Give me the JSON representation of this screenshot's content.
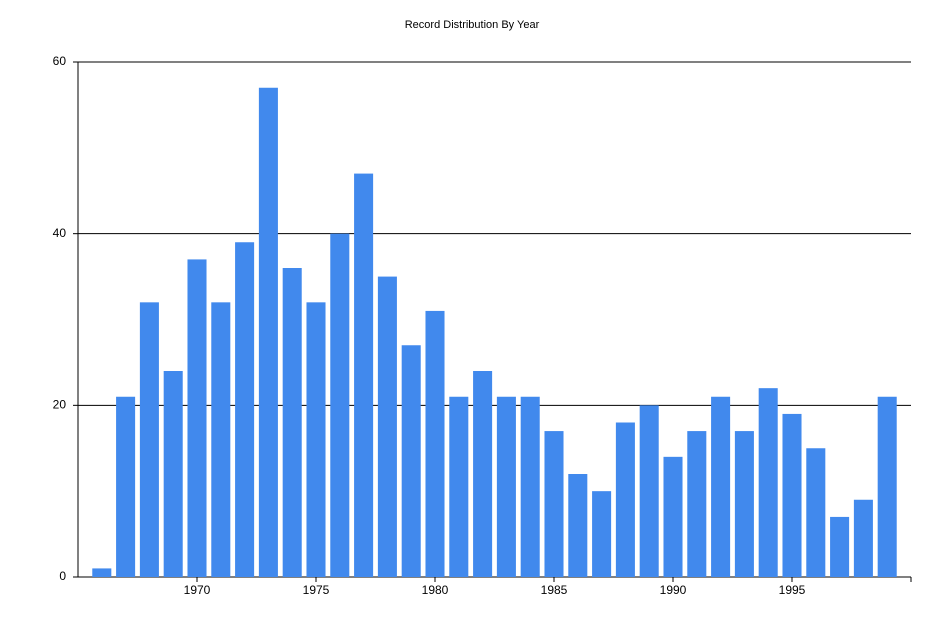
{
  "chart_data": {
    "type": "bar",
    "title": "Record Distribution By Year",
    "x": [
      1966,
      1967,
      1968,
      1969,
      1970,
      1971,
      1972,
      1973,
      1974,
      1975,
      1976,
      1977,
      1978,
      1979,
      1980,
      1981,
      1982,
      1983,
      1984,
      1985,
      1986,
      1987,
      1988,
      1989,
      1990,
      1991,
      1992,
      1993,
      1994,
      1995,
      1996,
      1997,
      1998,
      1999
    ],
    "values": [
      1,
      21,
      32,
      24,
      37,
      32,
      39,
      57,
      36,
      32,
      40,
      47,
      35,
      27,
      31,
      21,
      24,
      21,
      21,
      17,
      12,
      10,
      18,
      20,
      14,
      17,
      21,
      17,
      22,
      19,
      15,
      7,
      9,
      21
    ],
    "color": "#4189ed",
    "xlim": [
      1965,
      2000
    ],
    "xticks": [
      1970,
      1975,
      1980,
      1985,
      1990,
      1995
    ],
    "ylim": [
      0,
      60
    ],
    "yticks": [
      0,
      20,
      40,
      60
    ],
    "grid": true
  }
}
